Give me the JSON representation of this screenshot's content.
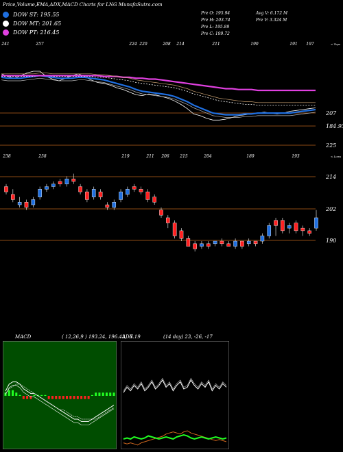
{
  "header": {
    "title": "Price,Volume,EMA,ADX,MACD Charts for LNG MunafaSutra.com"
  },
  "legend": [
    {
      "label": "DOW ST: 195.55",
      "color": "#1f6fe0"
    },
    {
      "label": "DOW MT: 201.65",
      "color": "#ffffff"
    },
    {
      "label": "DOW PT: 216.45",
      "color": "#e040e0"
    }
  ],
  "stats": {
    "col1": [
      "Pre O: 195.94",
      "Pre H: 203.74",
      "Pre L: 195.89",
      "Pre C: 199.72"
    ],
    "col2": [
      "Avg V: 6.172 M",
      "Pre V: 3.324 M"
    ]
  },
  "colors": {
    "up": "#1f6fe0",
    "down": "#ff2020",
    "grid": "#8b4a14",
    "ema_short": "#1f6fe0",
    "ema_mid": "#ffffff",
    "ema_long": "#e040e0"
  },
  "chart_data": [
    {
      "type": "line",
      "name": "ema_panel",
      "top_labels": [
        "241",
        "257",
        "224",
        "220",
        "208",
        "214",
        "211",
        "190",
        "191",
        "197"
      ],
      "corner_label": "< Tops",
      "bottom_labels": [
        "238",
        "258",
        "219",
        "211",
        "206",
        "215",
        "204",
        "189",
        "193"
      ],
      "bottom_corner_label": "< Lows",
      "price_labels": [
        "207",
        "184.93",
        "225"
      ],
      "ylim": [
        150,
        260
      ],
      "series": [
        {
          "key": "price",
          "values": [
            235,
            232,
            230,
            233,
            236,
            238,
            238,
            232,
            229,
            227,
            230,
            233,
            235,
            232,
            228,
            225,
            224,
            222,
            219,
            217,
            214,
            211,
            210,
            212,
            211,
            209,
            207,
            204,
            200,
            195,
            189,
            187,
            184,
            182,
            182,
            183,
            185,
            187,
            188,
            189,
            190,
            191,
            190,
            189,
            190,
            192,
            193,
            194,
            195,
            196
          ]
        },
        {
          "key": "ema_short",
          "values": [
            231,
            230,
            230,
            230,
            231,
            232,
            233,
            232,
            231,
            230,
            230,
            230,
            231,
            231,
            230,
            229,
            228,
            226,
            224,
            222,
            220,
            217,
            215,
            214,
            213,
            212,
            211,
            209,
            206,
            203,
            199,
            196,
            193,
            190,
            189,
            188,
            188,
            188,
            189,
            189,
            190,
            190,
            190,
            190,
            190,
            190,
            191,
            192,
            193,
            194
          ]
        },
        {
          "key": "ema_mid",
          "values": [
            232,
            232,
            232,
            232,
            232,
            232,
            233,
            233,
            232,
            232,
            232,
            232,
            232,
            232,
            232,
            231,
            231,
            230,
            229,
            228,
            227,
            225,
            224,
            223,
            222,
            221,
            220,
            219,
            217,
            215,
            212,
            210,
            208,
            206,
            204,
            203,
            202,
            201,
            200,
            200,
            199,
            199,
            199,
            199,
            199,
            199,
            199,
            199,
            199,
            199
          ]
        },
        {
          "key": "ema_long",
          "values": [
            233,
            233,
            233,
            233,
            233,
            233,
            233,
            233,
            233,
            233,
            233,
            233,
            233,
            233,
            233,
            233,
            232,
            232,
            232,
            231,
            231,
            230,
            230,
            229,
            229,
            228,
            227,
            226,
            225,
            224,
            223,
            222,
            221,
            220,
            219,
            218,
            218,
            217,
            217,
            217,
            216,
            216,
            216,
            216,
            216,
            216,
            216,
            216,
            216,
            216
          ]
        }
      ]
    },
    {
      "type": "candlestick",
      "name": "price_panel",
      "price_labels": [
        "214",
        "202",
        "190"
      ],
      "ylim": [
        186,
        219
      ],
      "candles": [
        [
          212,
          210,
          213,
          209
        ],
        [
          209,
          207,
          211,
          206
        ],
        [
          205,
          206,
          208,
          204
        ],
        [
          206,
          204,
          207,
          203
        ],
        [
          205,
          207,
          208,
          204
        ],
        [
          208,
          211,
          212,
          207
        ],
        [
          211,
          212,
          213,
          210
        ],
        [
          212,
          213,
          214,
          211
        ],
        [
          214,
          213,
          215,
          212
        ],
        [
          213,
          215,
          216,
          212
        ],
        [
          215,
          214,
          217,
          213
        ],
        [
          212,
          210,
          213,
          209
        ],
        [
          210,
          207,
          211,
          206
        ],
        [
          208,
          211,
          212,
          207
        ],
        [
          210,
          208,
          211,
          207
        ],
        [
          205,
          204,
          206,
          203
        ],
        [
          204,
          206,
          207,
          203
        ],
        [
          207,
          210,
          211,
          206
        ],
        [
          209,
          211,
          212,
          208
        ],
        [
          212,
          211,
          213,
          210
        ],
        [
          211,
          210,
          212,
          209
        ],
        [
          210,
          207,
          211,
          206
        ],
        [
          208,
          206,
          209,
          205
        ],
        [
          203,
          201,
          204,
          200
        ],
        [
          200,
          198,
          201,
          196
        ],
        [
          198,
          193,
          199,
          192
        ],
        [
          195,
          192,
          196,
          191
        ],
        [
          192,
          189,
          193,
          189
        ],
        [
          190,
          188,
          191,
          187
        ],
        [
          189,
          190,
          191,
          188
        ],
        [
          190,
          189,
          191,
          188
        ],
        [
          190,
          191,
          191,
          189
        ],
        [
          191,
          190,
          192,
          189
        ],
        [
          190,
          189,
          191,
          189
        ],
        [
          189,
          191,
          192,
          188
        ],
        [
          191,
          189,
          191,
          188
        ],
        [
          190,
          191,
          192,
          189
        ],
        [
          191,
          190,
          191,
          189
        ],
        [
          191,
          193,
          194,
          190
        ],
        [
          193,
          197,
          198,
          192
        ],
        [
          199,
          197,
          200,
          193
        ],
        [
          199,
          195,
          200,
          194
        ],
        [
          196,
          197,
          198,
          194
        ],
        [
          198,
          195,
          199,
          194
        ],
        [
          196,
          195,
          197,
          193
        ],
        [
          195,
          194,
          196,
          193
        ],
        [
          196,
          200,
          203,
          195
        ]
      ]
    },
    {
      "type": "line",
      "name": "macd_panel",
      "label": "MACD",
      "params": "( 12,26,9 ) 193.24, 196.43, -3.19",
      "series": [
        {
          "key": "macd",
          "values": [
            2,
            5,
            6,
            6,
            5,
            3,
            2,
            1,
            1,
            0,
            -1,
            -2,
            -3,
            -4,
            -5,
            -6,
            -7,
            -8,
            -9,
            -10,
            -10,
            -11,
            -11,
            -11,
            -10,
            -9,
            -8,
            -7,
            -6,
            -5,
            -4
          ]
        },
        {
          "key": "signal",
          "values": [
            1,
            3,
            4,
            5,
            5,
            4,
            3,
            2,
            1,
            0,
            -1,
            -2,
            -3,
            -4,
            -5,
            -6,
            -6,
            -7,
            -8,
            -9,
            -9,
            -10,
            -10,
            -10,
            -10,
            -10,
            -9,
            -8,
            -7,
            -6,
            -5
          ]
        },
        {
          "key": "histogram",
          "values": [
            1,
            2,
            2,
            1,
            0,
            -1,
            -1,
            -1,
            0,
            0,
            0,
            0,
            -1,
            -1,
            -1,
            -1,
            -1,
            -1,
            -1,
            -1,
            -1,
            -1,
            -1,
            -1,
            0,
            1,
            1,
            1,
            1,
            1,
            1
          ]
        }
      ]
    },
    {
      "type": "line",
      "name": "adx_panel",
      "label": "ADX",
      "params": "(14 day) 23, -26, -17",
      "series": [
        {
          "key": "adx",
          "values": [
            23,
            26,
            24,
            27,
            25,
            28,
            24,
            26,
            29,
            25,
            27,
            30,
            26,
            28,
            24,
            27,
            29,
            25,
            26,
            30,
            27,
            25,
            28,
            26,
            29,
            24,
            27,
            25,
            28,
            26
          ]
        },
        {
          "key": "plus_di",
          "values": [
            8,
            9,
            8,
            10,
            9,
            8,
            9,
            11,
            10,
            9,
            8,
            9,
            10,
            9,
            8,
            10,
            11,
            12,
            11,
            9,
            8,
            9,
            10,
            9,
            8,
            9,
            10,
            9,
            8,
            9
          ]
        },
        {
          "key": "minus_di",
          "values": [
            4,
            3,
            4,
            3,
            2,
            4,
            5,
            6,
            7,
            8,
            9,
            10,
            12,
            13,
            14,
            13,
            12,
            14,
            15,
            13,
            12,
            11,
            10,
            9,
            8,
            7,
            6,
            7,
            6,
            5
          ]
        }
      ]
    }
  ]
}
